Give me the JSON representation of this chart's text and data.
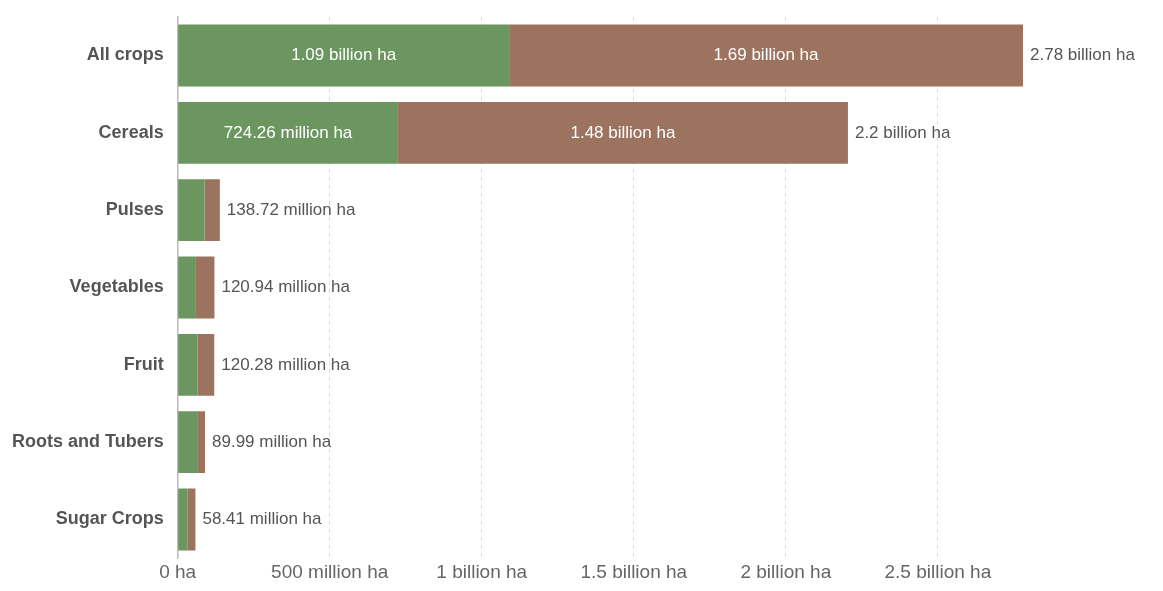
{
  "chart_data": {
    "type": "bar",
    "orientation": "horizontal",
    "stacked": true,
    "categories": [
      "All crops",
      "Cereals",
      "Pulses",
      "Vegetables",
      "Fruit",
      "Roots and Tubers",
      "Sugar Crops"
    ],
    "series": [
      {
        "color": "#6b9660",
        "values": [
          1090000000,
          724260000,
          88000000,
          60000000,
          65000000,
          64000000,
          33000000
        ],
        "value_labels": [
          "1.09 billion ha",
          "724.26 million ha",
          null,
          null,
          null,
          null,
          null
        ]
      },
      {
        "color": "#9b735e",
        "values": [
          1690000000,
          1480000000,
          50720000,
          60940000,
          55280000,
          25990000,
          25410000
        ],
        "value_labels": [
          "1.69 billion ha",
          "1.48 billion ha",
          null,
          null,
          null,
          null,
          null
        ]
      }
    ],
    "totals": [
      "2.78 billion ha",
      "2.2 billion ha",
      "138.72 million ha",
      "120.94 million ha",
      "120.28 million ha",
      "89.99 million ha",
      "58.41 million ha"
    ],
    "xlim": [
      0,
      2780000000
    ],
    "xticks": [
      {
        "value": 0,
        "label": "0 ha"
      },
      {
        "value": 500000000,
        "label": "500 million ha"
      },
      {
        "value": 1000000000,
        "label": "1 billion ha"
      },
      {
        "value": 1500000000,
        "label": "1.5 billion ha"
      },
      {
        "value": 2000000000,
        "label": "2 billion ha"
      },
      {
        "value": 2500000000,
        "label": "2.5 billion ha"
      }
    ],
    "grid": "x",
    "legend": false
  }
}
